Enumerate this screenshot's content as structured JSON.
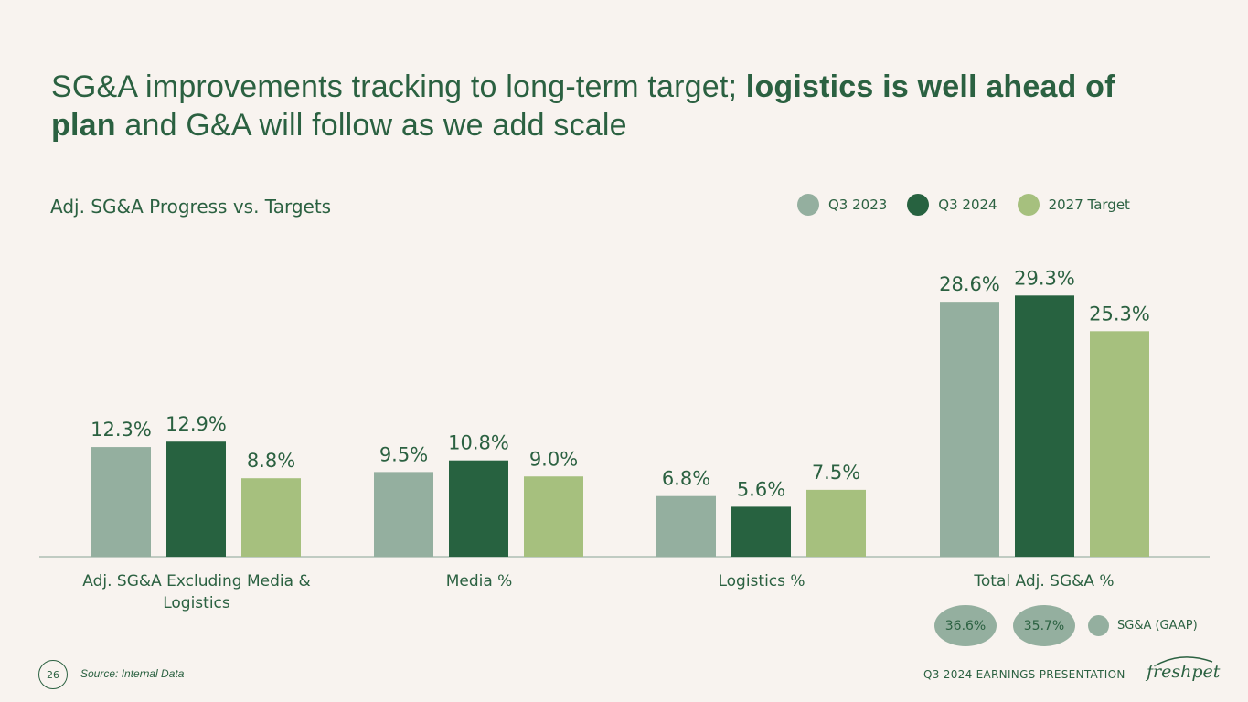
{
  "headline": {
    "part1": "SG&A improvements tracking to long-term target; ",
    "bold1": "logistics is well ahead of",
    "bold2": "plan",
    "part2": " and G&A will follow as we add scale"
  },
  "colors": {
    "q3_2023": "#94af9f",
    "q3_2024": "#276240",
    "target_2027": "#a6c07e",
    "text": "#2b6141",
    "axis": "#9fb3a6"
  },
  "legend": [
    {
      "label": "Q3 2023",
      "color": "#94af9f"
    },
    {
      "label": "Q3 2024",
      "color": "#276240"
    },
    {
      "label": "2027 Target",
      "color": "#a6c07e"
    }
  ],
  "chart_data": {
    "type": "bar",
    "title": "Adj. SG&A Progress vs. Targets",
    "categories": [
      "Adj. SG&A Excluding Media & Logistics",
      "Media %",
      "Logistics %",
      "Total Adj. SG&A %"
    ],
    "series": [
      {
        "name": "Q3 2023",
        "values": [
          12.3,
          9.5,
          6.8,
          28.6
        ],
        "labels": [
          "12.3%",
          "9.5%",
          "6.8%",
          "28.6%"
        ]
      },
      {
        "name": "Q3 2024",
        "values": [
          12.9,
          10.8,
          5.6,
          29.3
        ],
        "labels": [
          "12.9%",
          "10.8%",
          "5.6%",
          "29.3%"
        ]
      },
      {
        "name": "2027 Target",
        "values": [
          8.8,
          9.0,
          7.5,
          25.3
        ],
        "labels": [
          "8.8%",
          "9.0%",
          "7.5%",
          "25.3%"
        ]
      }
    ],
    "ylim": [
      0,
      32
    ],
    "xlabel": "",
    "ylabel": "",
    "grid": false,
    "legend_position": "top-right"
  },
  "gaap": {
    "values": [
      "36.6%",
      "35.7%"
    ],
    "label": "SG&A (GAAP)"
  },
  "footer": {
    "page_number": "26",
    "source": "Source: Internal Data",
    "presentation": "Q3 2024 EARNINGS PRESENTATION",
    "logo": "freshpet"
  }
}
